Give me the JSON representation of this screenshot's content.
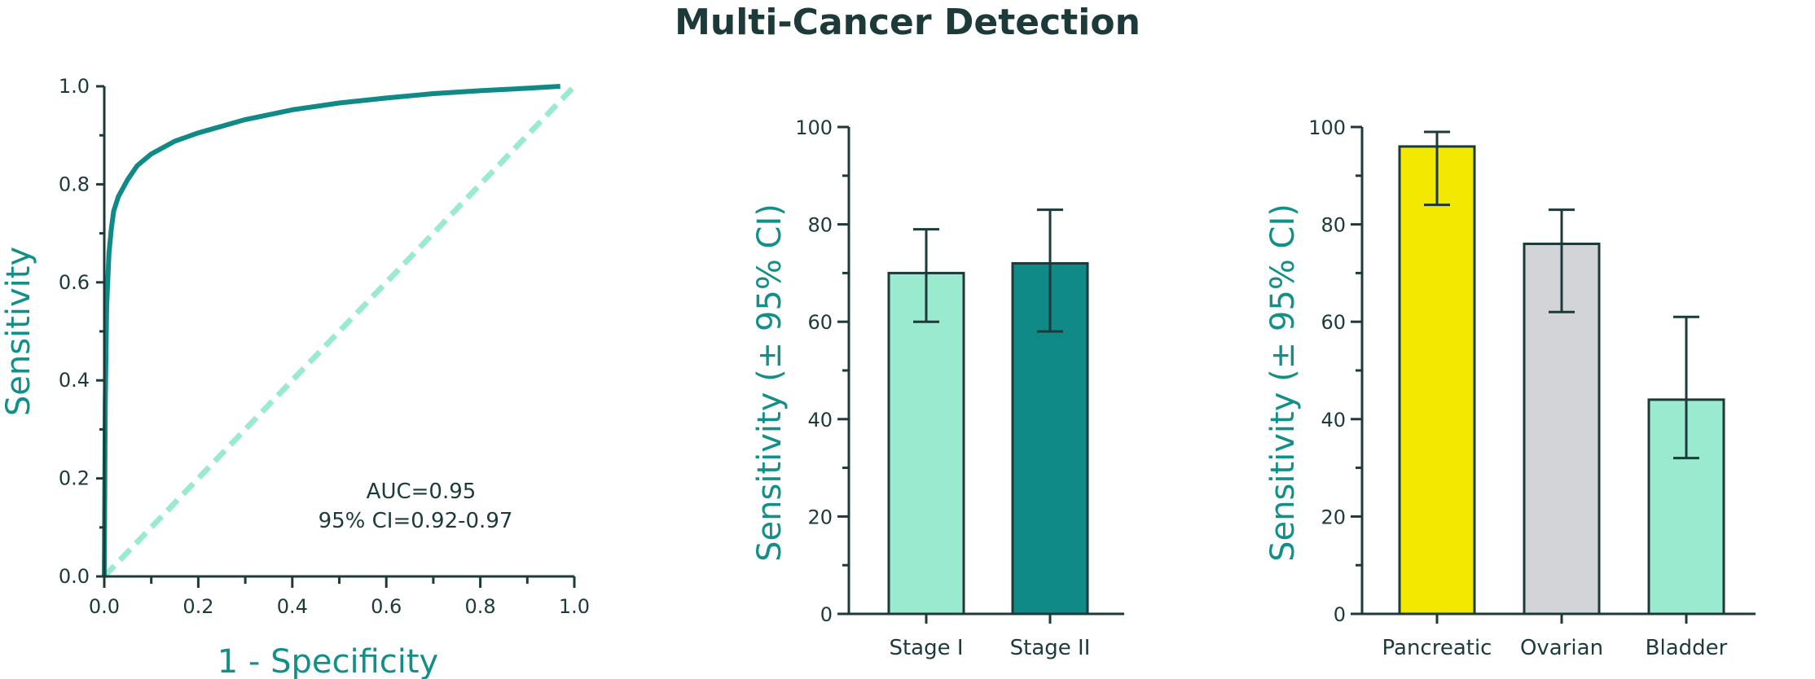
{
  "title": "Multi-Cancer Detection",
  "colors": {
    "axis": "#1d3a3a",
    "teal": "#0f8a87",
    "mint": "#9aeacf",
    "yellow": "#f3e800",
    "gray": "#d2d4d8",
    "axis_title": "#138f8a"
  },
  "chart_data": [
    {
      "type": "line",
      "xlabel": "1 - Specificity",
      "ylabel": "Sensitivity",
      "xlim": [
        0,
        1
      ],
      "ylim": [
        0,
        1
      ],
      "xticks": [
        "0.0",
        "0.2",
        "0.4",
        "0.6",
        "0.8",
        "1.0"
      ],
      "yticks": [
        "0.0",
        "0.2",
        "0.4",
        "0.6",
        "0.8",
        "1.0"
      ],
      "series": [
        {
          "style": "solid",
          "color": "#0f8a87",
          "x": [
            0.0,
            0.002,
            0.005,
            0.01,
            0.015,
            0.02,
            0.03,
            0.05,
            0.07,
            0.1,
            0.15,
            0.2,
            0.3,
            0.4,
            0.5,
            0.6,
            0.7,
            0.8,
            0.9,
            0.97
          ],
          "y": [
            0.0,
            0.35,
            0.55,
            0.66,
            0.71,
            0.745,
            0.775,
            0.81,
            0.838,
            0.862,
            0.888,
            0.905,
            0.932,
            0.952,
            0.966,
            0.976,
            0.985,
            0.991,
            0.996,
            1.0
          ]
        },
        {
          "style": "dashed",
          "color": "#9aeacf",
          "x": [
            0.0,
            1.0
          ],
          "y": [
            0.0,
            1.0
          ]
        }
      ],
      "annotations": [
        "AUC=0.95",
        "95% CI=0.92-0.97"
      ]
    },
    {
      "type": "bar",
      "ylabel": "Sensitivity (± 95% CI)",
      "ylim": [
        0,
        100
      ],
      "yticks": [
        "0",
        "20",
        "40",
        "60",
        "80",
        "100"
      ],
      "categories": [
        "Stage I",
        "Stage II"
      ],
      "values": [
        70,
        72
      ],
      "ci_low": [
        60,
        58
      ],
      "ci_high": [
        79,
        83
      ],
      "bar_colors": [
        "#9aeacf",
        "#0f8a87"
      ]
    },
    {
      "type": "bar",
      "ylabel": "Sensitivity (± 95% CI)",
      "ylim": [
        0,
        100
      ],
      "yticks": [
        "0",
        "20",
        "40",
        "60",
        "80",
        "100"
      ],
      "categories": [
        "Pancreatic",
        "Ovarian",
        "Bladder"
      ],
      "values": [
        96,
        76,
        44
      ],
      "ci_low": [
        84,
        62,
        32
      ],
      "ci_high": [
        99,
        83,
        61
      ],
      "bar_colors": [
        "#f3e800",
        "#d2d4d8",
        "#9aeacf"
      ]
    }
  ]
}
